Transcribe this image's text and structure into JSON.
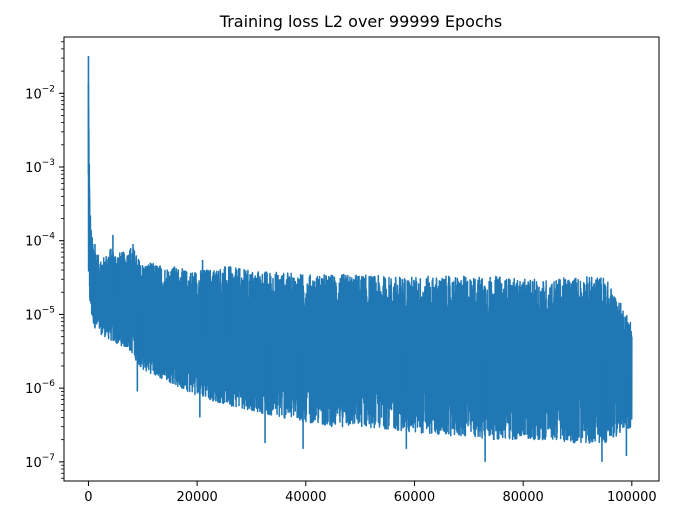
{
  "chart_data": {
    "type": "line",
    "title": "Training loss L2 over 99999 Epochs",
    "xlabel": "",
    "ylabel": "",
    "yscale": "log",
    "xlim": [
      -4500,
      105000
    ],
    "ylim": [
      5.5e-08,
      0.058
    ],
    "grid": false,
    "legend": "none",
    "xticks": [
      0,
      20000,
      40000,
      60000,
      80000,
      100000
    ],
    "xtick_labels": [
      "0",
      "20000",
      "40000",
      "60000",
      "80000",
      "100000"
    ],
    "yticks": [
      1e-07,
      1e-06,
      1e-05,
      0.0001,
      0.001,
      0.01
    ],
    "ytick_base": "10",
    "ytick_exponents": [
      "−7",
      "−6",
      "−5",
      "−4",
      "−3",
      "−2"
    ],
    "series": [
      {
        "color": "#1f77b4",
        "envelope": {
          "x": [
            0,
            150,
            300,
            600,
            1000,
            1500,
            2000,
            3000,
            4000,
            5000,
            6000,
            7000,
            8000,
            9000,
            10000,
            12000,
            14000,
            16000,
            18000,
            20000,
            25000,
            30000,
            35000,
            40000,
            45000,
            50000,
            55000,
            60000,
            65000,
            70000,
            75000,
            80000,
            85000,
            90000,
            95000,
            99999
          ],
          "upper": [
            0.032,
            0.0011,
            0.00022,
            0.00012,
            9e-05,
            7e-05,
            6e-05,
            6e-05,
            8e-05,
            7e-05,
            7e-05,
            7e-05,
            9e-05,
            6e-05,
            5e-05,
            5e-05,
            4.5e-05,
            4.5e-05,
            4e-05,
            4e-05,
            4.5e-05,
            4e-05,
            3.8e-05,
            3.5e-05,
            3.5e-05,
            3.5e-05,
            3.3e-05,
            3.3e-05,
            3.3e-05,
            3.3e-05,
            3.3e-05,
            3e-05,
            3e-05,
            3.3e-05,
            3.3e-05,
            8e-06
          ],
          "lower": [
            2e-05,
            2e-05,
            1.2e-05,
            9e-06,
            7e-06,
            6e-06,
            5.5e-06,
            5e-06,
            4.5e-06,
            4e-06,
            3.8e-06,
            3.5e-06,
            3e-06,
            2.2e-06,
            1.8e-06,
            1.5e-06,
            1.3e-06,
            1.1e-06,
            9e-07,
            8e-07,
            6e-07,
            5e-07,
            4e-07,
            3.5e-07,
            3e-07,
            3e-07,
            2.8e-07,
            2.5e-07,
            2.3e-07,
            2.2e-07,
            2e-07,
            2e-07,
            2e-07,
            1.8e-07,
            1.8e-07,
            3e-07
          ]
        },
        "spikes": [
          {
            "x": 0,
            "y": 0.032
          },
          {
            "x": 150,
            "y": 0.0011
          },
          {
            "x": 350,
            "y": 0.00022
          },
          {
            "x": 1200,
            "y": 9e-05
          },
          {
            "x": 4500,
            "y": 0.00012
          },
          {
            "x": 8200,
            "y": 9e-05
          },
          {
            "x": 21000,
            "y": 5.5e-05
          },
          {
            "x": 26000,
            "y": 4.5e-05
          },
          {
            "x": 9000,
            "y": 9e-07
          },
          {
            "x": 20500,
            "y": 4e-07
          },
          {
            "x": 32500,
            "y": 1.8e-07
          },
          {
            "x": 39500,
            "y": 1.5e-07
          },
          {
            "x": 58500,
            "y": 1.5e-07
          },
          {
            "x": 73000,
            "y": 1e-07
          },
          {
            "x": 94500,
            "y": 1e-07
          },
          {
            "x": 99000,
            "y": 1.2e-07
          }
        ]
      }
    ]
  }
}
